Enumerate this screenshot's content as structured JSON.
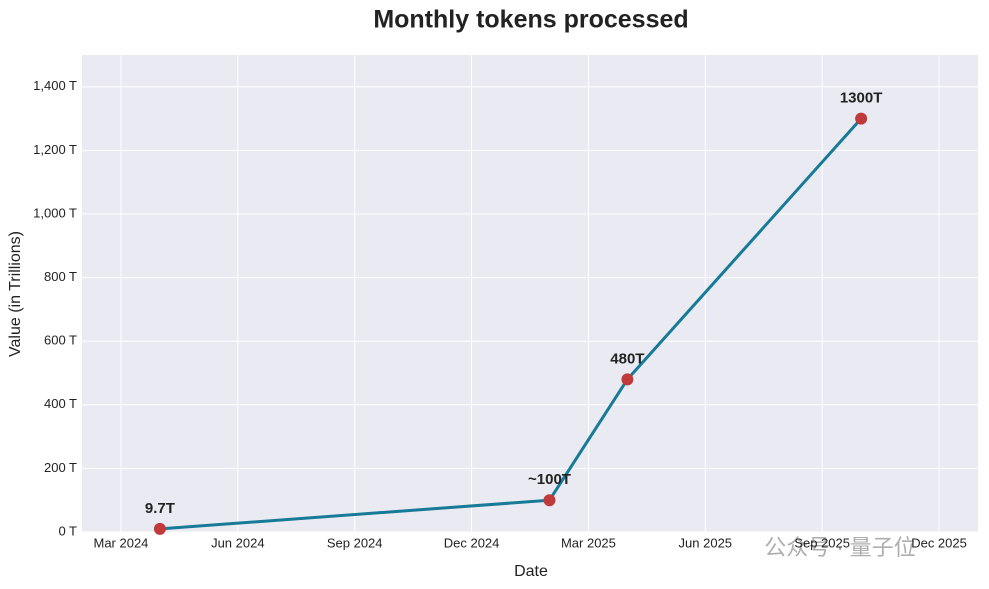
{
  "chart_data": {
    "type": "line",
    "title": "Monthly tokens processed",
    "x_label": "Date",
    "y_label": "Value (in Trillions)",
    "x": [
      "2024-04",
      "2025-02",
      "2025-04",
      "2025-10"
    ],
    "series": [
      {
        "name": "Monthly tokens",
        "color": "#177a96",
        "marker_color": "#c0393b",
        "values": [
          9.7,
          100,
          480,
          1300
        ],
        "value_labels": [
          "9.7T",
          "~100T",
          "480T",
          "1300T"
        ]
      }
    ],
    "xlim": [
      "2024-02",
      "2026-01"
    ],
    "xticks": [
      {
        "value": "2024-03",
        "label": "Mar 2024"
      },
      {
        "value": "2024-06",
        "label": "Jun 2024"
      },
      {
        "value": "2024-09",
        "label": "Sep 2024"
      },
      {
        "value": "2024-12",
        "label": "Dec 2024"
      },
      {
        "value": "2025-03",
        "label": "Mar 2025"
      },
      {
        "value": "2025-06",
        "label": "Jun 2025"
      },
      {
        "value": "2025-09",
        "label": "Sep 2025"
      },
      {
        "value": "2025-12",
        "label": "Dec 2025"
      }
    ],
    "ylim": [
      0,
      1500
    ],
    "yticks": [
      {
        "value": 0,
        "label": "0 T"
      },
      {
        "value": 200,
        "label": "200 T"
      },
      {
        "value": 400,
        "label": "400 T"
      },
      {
        "value": 600,
        "label": "600 T"
      },
      {
        "value": 800,
        "label": "800 T"
      },
      {
        "value": 1000,
        "label": "1,000 T"
      },
      {
        "value": 1200,
        "label": "1,200 T"
      },
      {
        "value": 1400,
        "label": "1,400 T"
      }
    ],
    "grid": true
  },
  "watermark": "公众号 · 量子位"
}
